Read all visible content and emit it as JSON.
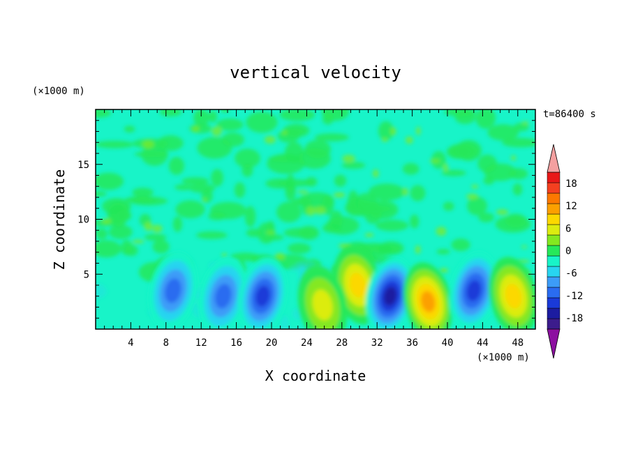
{
  "chart_data": {
    "type": "heatmap",
    "title": "vertical velocity",
    "xlabel": "X coordinate",
    "ylabel": "Z coordinate",
    "x_unit": "(×1000 m)",
    "y_unit": "(×1000 m)",
    "time_label": "t=86400 s",
    "xlim": [
      0,
      50
    ],
    "ylim": [
      0,
      20
    ],
    "x_ticks": [
      4,
      8,
      12,
      16,
      20,
      24,
      28,
      32,
      36,
      40,
      44,
      48
    ],
    "y_ticks": [
      5,
      10,
      15
    ],
    "colorbar": {
      "labels": [
        "18",
        "12",
        "6",
        "0",
        "-6",
        "-12",
        "-18"
      ],
      "label_values": [
        18,
        12,
        6,
        0,
        -6,
        -12,
        -18
      ],
      "levels": [
        -21,
        -18,
        -15,
        -12,
        -9,
        -6,
        -3,
        0,
        3,
        6,
        9,
        12,
        15,
        18,
        21
      ],
      "colors": [
        "#3c1c8c",
        "#1c1ca0",
        "#1a3ad8",
        "#2a6cf0",
        "#3c9cf8",
        "#28d4f0",
        "#18f4c8",
        "#26e85a",
        "#84e820",
        "#dcec10",
        "#fcd800",
        "#fca000",
        "#fc7800",
        "#f44020",
        "#e81818"
      ],
      "over_color": "#f4a0a0",
      "under_color": "#8c10a0"
    },
    "cells": [
      {
        "x": 14.5,
        "z": 3.0,
        "w": -10
      },
      {
        "x": 19.0,
        "z": 3.0,
        "w": -12
      },
      {
        "x": 8.8,
        "z": 3.5,
        "w": -10
      },
      {
        "x": 29.8,
        "z": 4.0,
        "w": 8
      },
      {
        "x": 33.5,
        "z": 3.0,
        "w": -14
      },
      {
        "x": 37.8,
        "z": 2.5,
        "w": 12
      },
      {
        "x": 43.0,
        "z": 3.5,
        "w": -11
      },
      {
        "x": 47.5,
        "z": 3.0,
        "w": 10
      },
      {
        "x": 25.8,
        "z": 2.2,
        "w": 6
      }
    ]
  }
}
